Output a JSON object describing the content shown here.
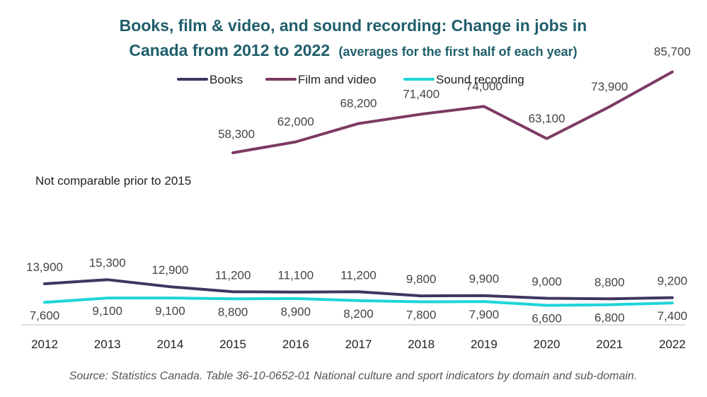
{
  "chart_data": {
    "type": "line",
    "title_line1": "Books, film & video, and sound recording: Change in jobs in",
    "title_line2_main": "Canada from 2012 to 2022",
    "title_line2_small": "(averages for the first half of each year)",
    "categories": [
      "2012",
      "2013",
      "2014",
      "2015",
      "2016",
      "2017",
      "2018",
      "2019",
      "2020",
      "2021",
      "2022"
    ],
    "series": [
      {
        "name": "Books",
        "color": "#3f3660",
        "values": [
          13900,
          15300,
          12900,
          11200,
          11100,
          11200,
          9800,
          9900,
          9000,
          8800,
          9200
        ],
        "labels": [
          "13,900",
          "15,300",
          "12,900",
          "11,200",
          "11,100",
          "11,200",
          "9,800",
          "9,900",
          "9,000",
          "8,800",
          "9,200"
        ]
      },
      {
        "name": "Film and video",
        "color": "#7d3a64",
        "values": [
          null,
          null,
          null,
          58300,
          62000,
          68200,
          71400,
          74000,
          63100,
          73900,
          85700
        ],
        "labels": [
          null,
          null,
          null,
          "58,300",
          "62,000",
          "68,200",
          "71,400",
          "74,000",
          "63,100",
          "73,900",
          "85,700"
        ]
      },
      {
        "name": "Sound recording",
        "color": "#1fd4d8",
        "values": [
          7600,
          9100,
          9100,
          8800,
          8900,
          8200,
          7800,
          7900,
          6600,
          6800,
          7400
        ],
        "labels": [
          "7,600",
          "9,100",
          "9,100",
          "8,800",
          "8,900",
          "8,200",
          "7,800",
          "7,900",
          "6,600",
          "6,800",
          "7,400"
        ]
      }
    ],
    "ylim": [
      0,
      100000
    ],
    "grid": false,
    "legend_position": "top",
    "annotation": "Not comparable prior to 2015",
    "source": "Source: Statistics Canada. Table 36-10-0652-01  National culture and sport indicators by domain and sub-domain."
  }
}
